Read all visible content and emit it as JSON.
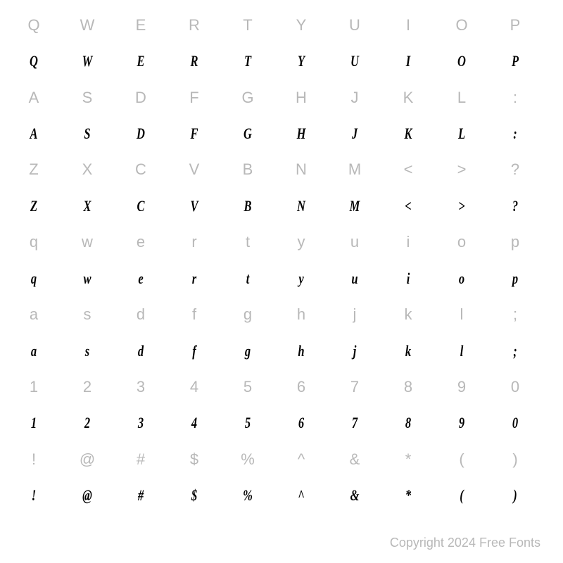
{
  "rows": [
    {
      "style": "ref",
      "chars": [
        "Q",
        "W",
        "E",
        "R",
        "T",
        "Y",
        "U",
        "I",
        "O",
        "P"
      ]
    },
    {
      "style": "sample",
      "chars": [
        "Q",
        "W",
        "E",
        "R",
        "T",
        "Y",
        "U",
        "I",
        "O",
        "P"
      ]
    },
    {
      "style": "ref",
      "chars": [
        "A",
        "S",
        "D",
        "F",
        "G",
        "H",
        "J",
        "K",
        "L",
        ":"
      ]
    },
    {
      "style": "sample",
      "chars": [
        "A",
        "S",
        "D",
        "F",
        "G",
        "H",
        "J",
        "K",
        "L",
        ":"
      ]
    },
    {
      "style": "ref",
      "chars": [
        "Z",
        "X",
        "C",
        "V",
        "B",
        "N",
        "M",
        "<",
        ">",
        "?"
      ]
    },
    {
      "style": "sample",
      "chars": [
        "Z",
        "X",
        "C",
        "V",
        "B",
        "N",
        "M",
        "<",
        ">",
        "?"
      ]
    },
    {
      "style": "ref",
      "chars": [
        "q",
        "w",
        "e",
        "r",
        "t",
        "y",
        "u",
        "i",
        "o",
        "p"
      ]
    },
    {
      "style": "sample",
      "chars": [
        "q",
        "w",
        "e",
        "r",
        "t",
        "y",
        "u",
        "i",
        "o",
        "p"
      ]
    },
    {
      "style": "ref",
      "chars": [
        "a",
        "s",
        "d",
        "f",
        "g",
        "h",
        "j",
        "k",
        "l",
        ";"
      ]
    },
    {
      "style": "sample",
      "chars": [
        "a",
        "s",
        "d",
        "f",
        "g",
        "h",
        "j",
        "k",
        "l",
        ";"
      ]
    },
    {
      "style": "ref",
      "chars": [
        "1",
        "2",
        "3",
        "4",
        "5",
        "6",
        "7",
        "8",
        "9",
        "0"
      ]
    },
    {
      "style": "sample",
      "chars": [
        "1",
        "2",
        "3",
        "4",
        "5",
        "6",
        "7",
        "8",
        "9",
        "0"
      ]
    },
    {
      "style": "ref",
      "chars": [
        "!",
        "@",
        "#",
        "$",
        "%",
        "^",
        "&",
        "*",
        "(",
        ")"
      ]
    },
    {
      "style": "sample",
      "chars": [
        "!",
        "@",
        "#",
        "$",
        "%",
        "^",
        "&",
        "*",
        "(",
        ")"
      ]
    }
  ],
  "copyright": "Copyright 2024 Free Fonts",
  "colors": {
    "ref": "#b8b8b8",
    "sample": "#000000",
    "background": "#ffffff"
  },
  "font_sizes": {
    "cell": 22,
    "copyright": 18
  }
}
